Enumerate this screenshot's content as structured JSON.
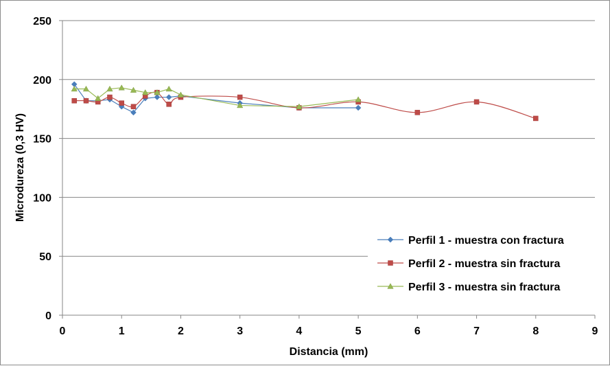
{
  "chart_data": {
    "type": "scatter",
    "title": "",
    "xlabel": "Distancia (mm)",
    "ylabel": "Microdureza (0,3 HV)",
    "xlim": [
      0,
      9
    ],
    "ylim": [
      0,
      250
    ],
    "xticks": [
      "0",
      "1",
      "2",
      "3",
      "4",
      "5",
      "6",
      "7",
      "8",
      "9"
    ],
    "yticks": [
      "0",
      "50",
      "100",
      "150",
      "200",
      "250"
    ],
    "grid": "horizontal",
    "legend_position": "bottom-right",
    "series": [
      {
        "name": "Perfil 1 - muestra con fractura",
        "color": "#4a7ebb",
        "marker": "diamond",
        "smooth": false,
        "x": [
          0.2,
          0.4,
          0.6,
          0.8,
          1.0,
          1.2,
          1.4,
          1.6,
          1.8,
          2.0,
          3.0,
          4.0,
          5.0
        ],
        "y": [
          196,
          182,
          182,
          183,
          177,
          172,
          184,
          185,
          185,
          186,
          180,
          176,
          176
        ]
      },
      {
        "name": "Perfil 2 - muestra sin fractura",
        "color": "#be4b48",
        "marker": "square",
        "smooth": true,
        "x": [
          0.2,
          0.4,
          0.6,
          0.8,
          1.0,
          1.2,
          1.4,
          1.6,
          1.8,
          2.0,
          3.0,
          4.0,
          5.0,
          6.0,
          7.0,
          8.0
        ],
        "y": [
          182,
          182,
          181,
          185,
          180,
          177,
          186,
          189,
          179,
          185,
          185,
          176,
          181,
          172,
          181,
          167
        ]
      },
      {
        "name": "Perfil 3 - muestra sin fractura",
        "color": "#98b954",
        "marker": "triangle",
        "smooth": false,
        "x": [
          0.2,
          0.4,
          0.6,
          0.8,
          1.0,
          1.2,
          1.4,
          1.6,
          1.8,
          2.0,
          3.0,
          4.0,
          5.0
        ],
        "y": [
          192,
          192,
          184,
          192,
          193,
          191,
          189,
          189,
          192,
          187,
          178,
          177,
          183
        ]
      }
    ]
  }
}
